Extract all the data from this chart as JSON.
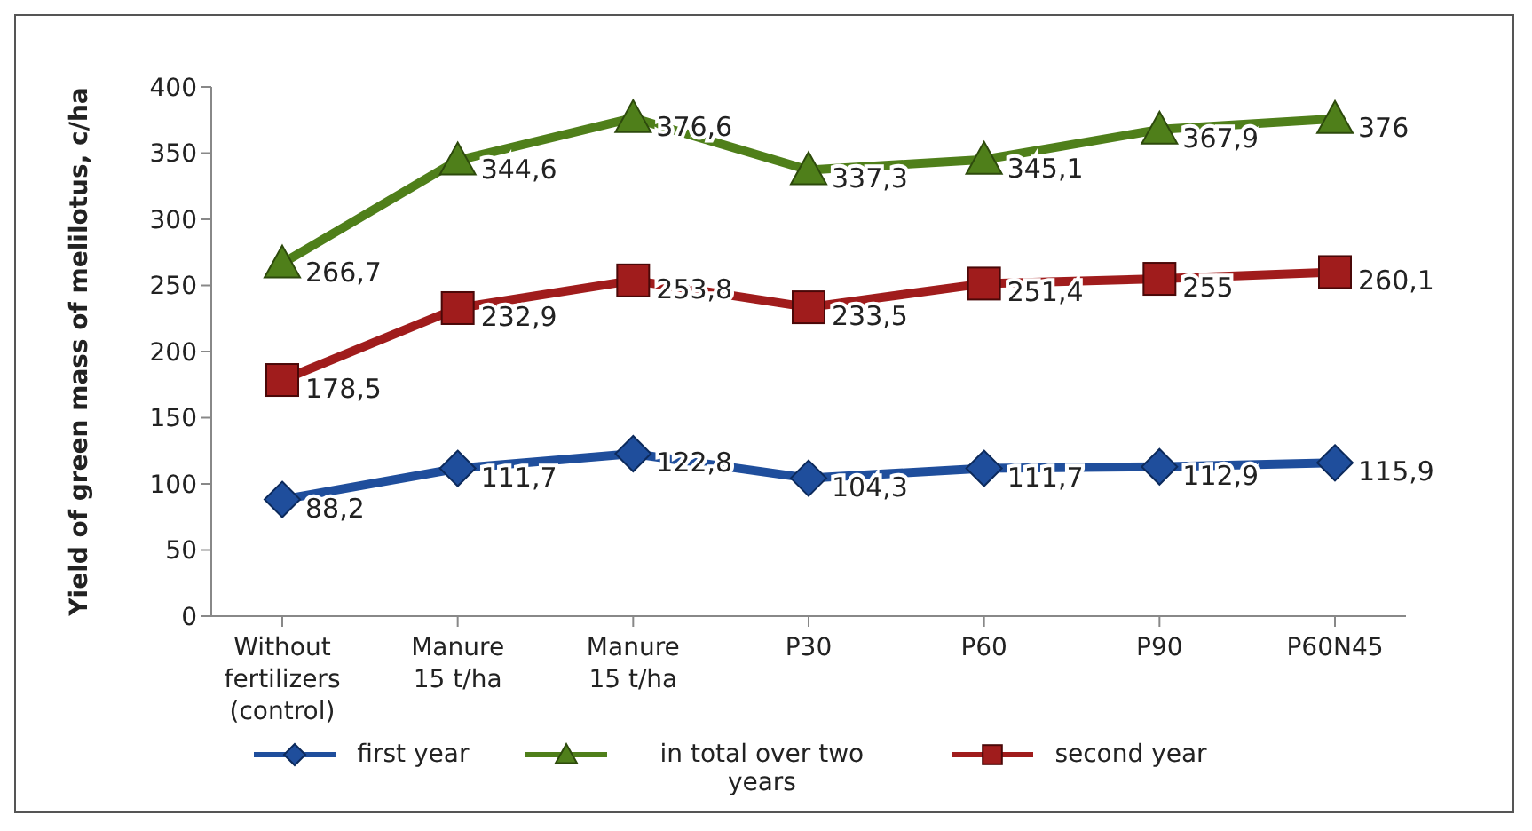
{
  "chart_data": {
    "type": "line",
    "ylabel": "Yield of green mass of melilotus, c/ha",
    "categories": [
      "Without fertilizers (control)",
      "Manure 15 t/ha",
      "Manure 15 t/ha",
      "P30",
      "P60",
      "P90",
      "P60N45"
    ],
    "series": [
      {
        "name": "first year",
        "color": "#1f4e9c",
        "marker": "diamond",
        "values": [
          88.2,
          111.7,
          122.8,
          104.3,
          111.7,
          112.9,
          115.9
        ],
        "value_labels": [
          "88,2",
          "111,7",
          "122,8",
          "104,3",
          "111,7",
          "112,9",
          "115,9"
        ]
      },
      {
        "name": "in total over two years",
        "color": "#4f7f1a",
        "marker": "triangle",
        "values": [
          266.7,
          344.6,
          376.6,
          337.3,
          345.1,
          367.9,
          376
        ],
        "value_labels": [
          "266,7",
          "344,6",
          "376,6",
          "337,3",
          "345,1",
          "367,9",
          "376"
        ]
      },
      {
        "name": "second year",
        "color": "#a01c1c",
        "marker": "square",
        "values": [
          178.5,
          232.9,
          253.8,
          233.5,
          251.4,
          255,
          260.1
        ],
        "value_labels": [
          "178,5",
          "232,9",
          "253,8",
          "233,5",
          "251,4",
          "255",
          "260,1"
        ]
      }
    ],
    "ylim": [
      0,
      400
    ],
    "yticks": [
      0,
      50,
      100,
      150,
      200,
      250,
      300,
      350,
      400
    ],
    "grid": false,
    "legend": "bottom"
  }
}
